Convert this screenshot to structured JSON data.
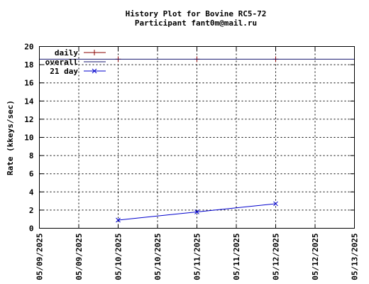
{
  "chart_data": {
    "type": "line",
    "title": "History Plot for Bovine RC5-72",
    "subtitle": "Participant fant0m@mail.ru",
    "ylabel": "Rate (kkeys/sec)",
    "xlabel": "",
    "ylim": [
      0,
      20
    ],
    "yticks": [
      0,
      2,
      4,
      6,
      8,
      10,
      12,
      14,
      16,
      18,
      20
    ],
    "xlim": [
      "2025-05-09",
      "2025-05-13"
    ],
    "xticks": [
      "2025-05-09",
      "2025-05-09T12:00",
      "2025-05-10",
      "2025-05-10T12:00",
      "2025-05-11",
      "2025-05-11T12:00",
      "2025-05-12",
      "2025-05-12T12:00",
      "2025-05-13"
    ],
    "xtick_labels": [
      "05/09/2025",
      "05/09/2025",
      "05/10/2025",
      "05/10/2025",
      "05/11/2025",
      "05/11/2025",
      "05/12/2025",
      "05/12/2025",
      "05/13/2025"
    ],
    "grid": true,
    "legend_position": "top-left",
    "series": [
      {
        "name": "daily",
        "color": "#8b0000",
        "marker": "plus",
        "x": [
          "2025-05-10",
          "2025-05-11",
          "2025-05-12"
        ],
        "y": [
          18.6,
          18.6,
          18.6
        ]
      },
      {
        "name": "overall",
        "color": "#191970",
        "marker": "none",
        "line": "horizontal",
        "value": 18.6
      },
      {
        "name": "21 day",
        "color": "#0000cd",
        "marker": "cross",
        "x": [
          "2025-05-10",
          "2025-05-11",
          "2025-05-12"
        ],
        "y": [
          0.9,
          1.8,
          2.7
        ]
      }
    ]
  }
}
